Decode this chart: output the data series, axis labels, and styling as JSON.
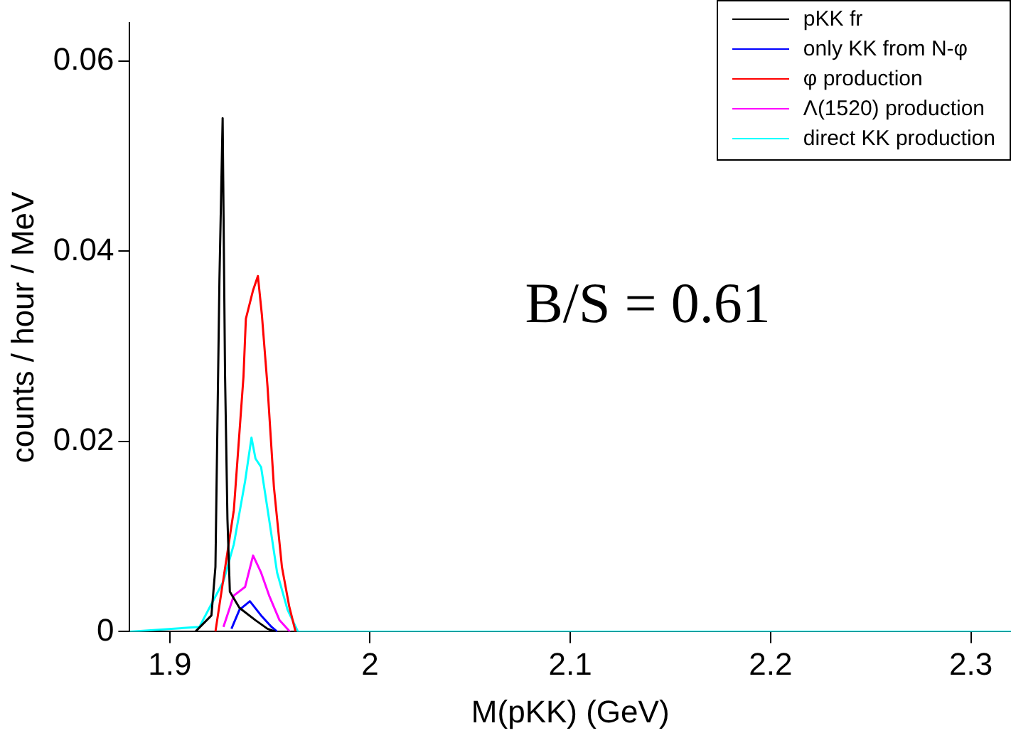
{
  "chart_data": {
    "type": "line",
    "xlabel": "M(pKK) (GeV)",
    "ylabel": "counts / hour / MeV",
    "xlim": [
      1.88,
      2.32
    ],
    "xticks": [
      1.9,
      2,
      2.1,
      2.2,
      2.3
    ],
    "ylim": [
      0,
      0.064
    ],
    "yticks": [
      0,
      0.02,
      0.04,
      0.06
    ],
    "grid": false,
    "marker": "none",
    "legend": "top right",
    "annotations": [
      "B/S = 0.61"
    ],
    "series": [
      {
        "name": "pKK fr",
        "color": "#000000",
        "x": [
          1.9128,
          1.9208,
          1.9228,
          1.9248,
          1.9264,
          1.9276,
          1.9288,
          1.93,
          1.9348,
          1.9428,
          1.9488,
          1.9528
        ],
        "values": [
          0,
          0.0017,
          0.0068,
          0.037,
          0.054,
          0.027,
          0.0118,
          0.0042,
          0.0025,
          0.0012,
          0.0003,
          0
        ]
      },
      {
        "name": "only KK from N-φ",
        "color": "#0000ff",
        "x": [
          1.9308,
          1.9348,
          1.94,
          1.9456,
          1.9508,
          1.9536
        ],
        "values": [
          0.0003,
          0.0023,
          0.0032,
          0.0017,
          0.0005,
          0
        ]
      },
      {
        "name": "φ production",
        "color": "#ff0000",
        "x": [
          1.9228,
          1.932,
          1.9368,
          1.938,
          1.9416,
          1.944,
          1.946,
          1.9488,
          1.952,
          1.956,
          1.9596,
          1.9628
        ],
        "values": [
          0,
          0.0128,
          0.0268,
          0.0329,
          0.0359,
          0.0374,
          0.0333,
          0.0258,
          0.0152,
          0.0068,
          0.0027,
          0
        ]
      },
      {
        "name": "Λ(1520) production",
        "color": "#ff00ff",
        "x": [
          1.9268,
          1.932,
          1.9376,
          1.9416,
          1.9456,
          1.9496,
          1.9548,
          1.96
        ],
        "values": [
          0.0005,
          0.0038,
          0.0047,
          0.008,
          0.0062,
          0.0038,
          0.0012,
          0
        ]
      },
      {
        "name": "direct KK production",
        "color": "#00ffff",
        "x": [
          1.88,
          1.9148,
          1.9268,
          1.932,
          1.9376,
          1.9408,
          1.9428,
          1.9456,
          1.9496,
          1.9536,
          1.9588,
          1.964,
          2.32
        ],
        "values": [
          0,
          0.0005,
          0.0053,
          0.0092,
          0.0158,
          0.0204,
          0.0182,
          0.0173,
          0.0118,
          0.0062,
          0.0023,
          0,
          0
        ]
      }
    ]
  }
}
